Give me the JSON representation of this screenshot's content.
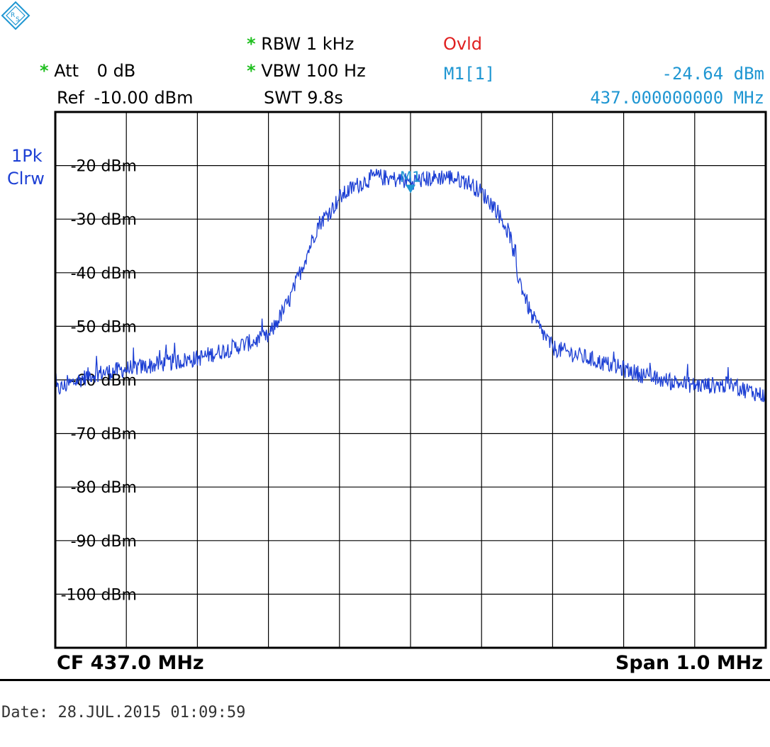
{
  "header": {
    "rbw_label": "RBW",
    "rbw_value": "1 kHz",
    "vbw_label": "VBW",
    "vbw_value": "100 Hz",
    "swt_label": "SWT",
    "swt_value": "9.8s",
    "att_label": "Att",
    "att_value": "0 dB",
    "ref_label": "Ref",
    "ref_value": "-10.00 dBm",
    "ovld": "Ovld",
    "marker_label": "M1[1]",
    "marker_level": "-24.64 dBm",
    "marker_freq": "437.000000000 MHz",
    "star": "*"
  },
  "trace": {
    "line1": "1Pk",
    "line2": "Clrw"
  },
  "footer": {
    "cf": "CF 437.0 MHz",
    "span": "Span 1.0 MHz"
  },
  "date": "Date: 28.JUL.2015  01:09:59",
  "colors": {
    "trace": "#1c3fd4",
    "marker": "#1e96d2",
    "ovld": "#e02020",
    "star": "#1fbf1f"
  },
  "chart_data": {
    "type": "line",
    "xlabel": "",
    "ylabel": "",
    "xlim": [
      436.5,
      437.5
    ],
    "ylim": [
      -110,
      -10
    ],
    "grid": true,
    "y_ticks": [
      -20,
      -30,
      -40,
      -50,
      -60,
      -70,
      -80,
      -90,
      -100
    ],
    "y_tick_labels": [
      "-20 dBm",
      "-30 dBm",
      "-40 dBm",
      "-50 dBm",
      "-60 dBm",
      "-70 dBm",
      "-80 dBm",
      "-90 dBm",
      "-100 dBm"
    ],
    "series": [
      {
        "x": [
          436.5,
          436.55,
          436.6,
          436.65,
          436.7,
          436.75,
          436.8,
          436.83,
          436.85,
          436.87,
          436.89,
          436.9,
          436.92,
          436.95,
          437.0,
          437.05,
          437.08,
          437.1,
          437.12,
          437.14,
          437.15,
          437.17,
          437.2,
          437.25,
          437.3,
          437.35,
          437.4,
          437.45,
          437.5
        ],
        "y": [
          -62,
          -59,
          -58,
          -57,
          -56,
          -54,
          -52,
          -45,
          -38,
          -31,
          -28,
          -26,
          -24,
          -22,
          -23,
          -22,
          -23,
          -25,
          -28,
          -33,
          -40,
          -48,
          -54,
          -56,
          -58,
          -60,
          -61,
          -61,
          -63
        ]
      }
    ],
    "markers": [
      {
        "label": "M1",
        "x": 437.0,
        "y": -24.64
      }
    ]
  }
}
